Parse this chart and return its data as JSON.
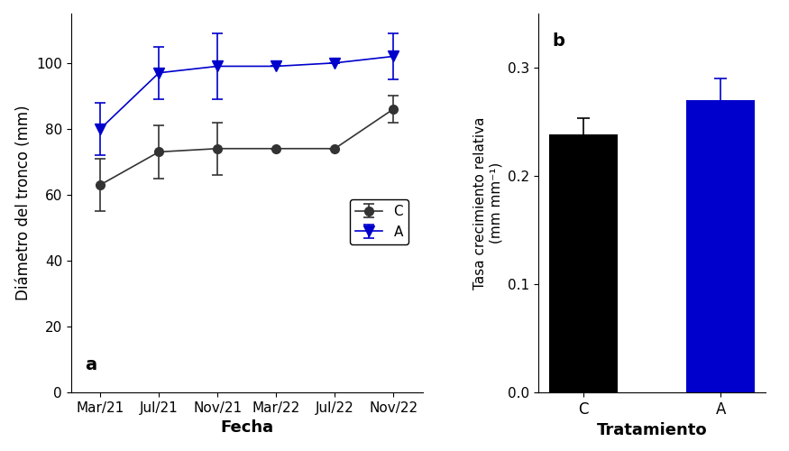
{
  "panel_a": {
    "x_labels": [
      "Mar/21",
      "Jul/21",
      "Nov/21",
      "Mar/22",
      "Jul/22",
      "Nov/22"
    ],
    "x_positions": [
      0,
      1,
      2,
      3,
      4,
      5
    ],
    "C_y": [
      63,
      73,
      74,
      74,
      74,
      86
    ],
    "C_yerr": [
      8,
      8,
      8,
      0,
      0,
      4
    ],
    "A_y": [
      80,
      97,
      99,
      99,
      100,
      102
    ],
    "A_yerr": [
      8,
      8,
      10,
      0,
      0,
      7
    ],
    "ylabel": "Diámetro del tronco (mm)",
    "xlabel": "Fecha",
    "ylim": [
      0,
      115
    ],
    "yticks": [
      0,
      20,
      40,
      60,
      80,
      100
    ],
    "label_a": "a",
    "legend_C": "C",
    "legend_A": "A",
    "color_C": "#333333",
    "color_A": "#0000cc"
  },
  "panel_b": {
    "categories": [
      "C",
      "A"
    ],
    "values": [
      0.238,
      0.27
    ],
    "yerr": [
      0.015,
      0.02
    ],
    "bar_colors": [
      "#000000",
      "#0000cc"
    ],
    "ylabel": "Tasa crecimiento relativa\n(mm mm⁻¹)",
    "xlabel": "Tratamiento",
    "ylim": [
      0,
      0.35
    ],
    "yticks": [
      0.0,
      0.1,
      0.2,
      0.3
    ],
    "label_b": "b"
  }
}
